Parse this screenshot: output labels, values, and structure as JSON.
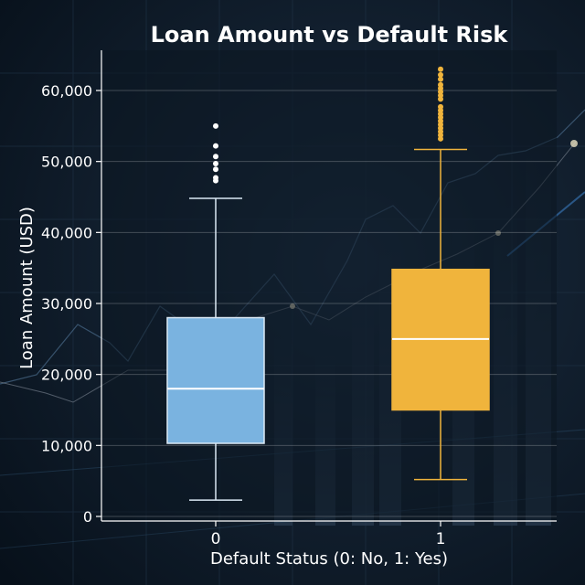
{
  "chart_data": {
    "type": "box",
    "title": "Loan Amount vs Default Risk",
    "xlabel": "Default Status (0: No, 1: Yes)",
    "ylabel": "Loan Amount (USD)",
    "ylim": [
      0,
      65000
    ],
    "yticks": [
      0,
      10000,
      20000,
      30000,
      40000,
      50000,
      60000
    ],
    "ytick_labels": [
      "0",
      "10,000",
      "20,000",
      "30,000",
      "40,000",
      "50,000",
      "60,000"
    ],
    "grid": true,
    "categories": [
      "0",
      "1"
    ],
    "colors": [
      "#7ab3e0",
      "#f0b43c"
    ],
    "boxes": [
      {
        "category": "0",
        "whisker_low": 2300,
        "q1": 10300,
        "median": 18000,
        "q3": 28000,
        "whisker_high": 44800,
        "outliers": [
          47300,
          47700,
          48900,
          49700,
          50700,
          52200,
          55000
        ]
      },
      {
        "category": "1",
        "whisker_low": 5200,
        "q1": 15000,
        "median": 25000,
        "q3": 34800,
        "whisker_high": 51700,
        "outliers": [
          53200,
          53700,
          54200,
          54700,
          55200,
          55700,
          56200,
          56700,
          57200,
          57700,
          58800,
          59300,
          59800,
          60300,
          60800,
          61600,
          62200,
          63000
        ]
      }
    ]
  }
}
